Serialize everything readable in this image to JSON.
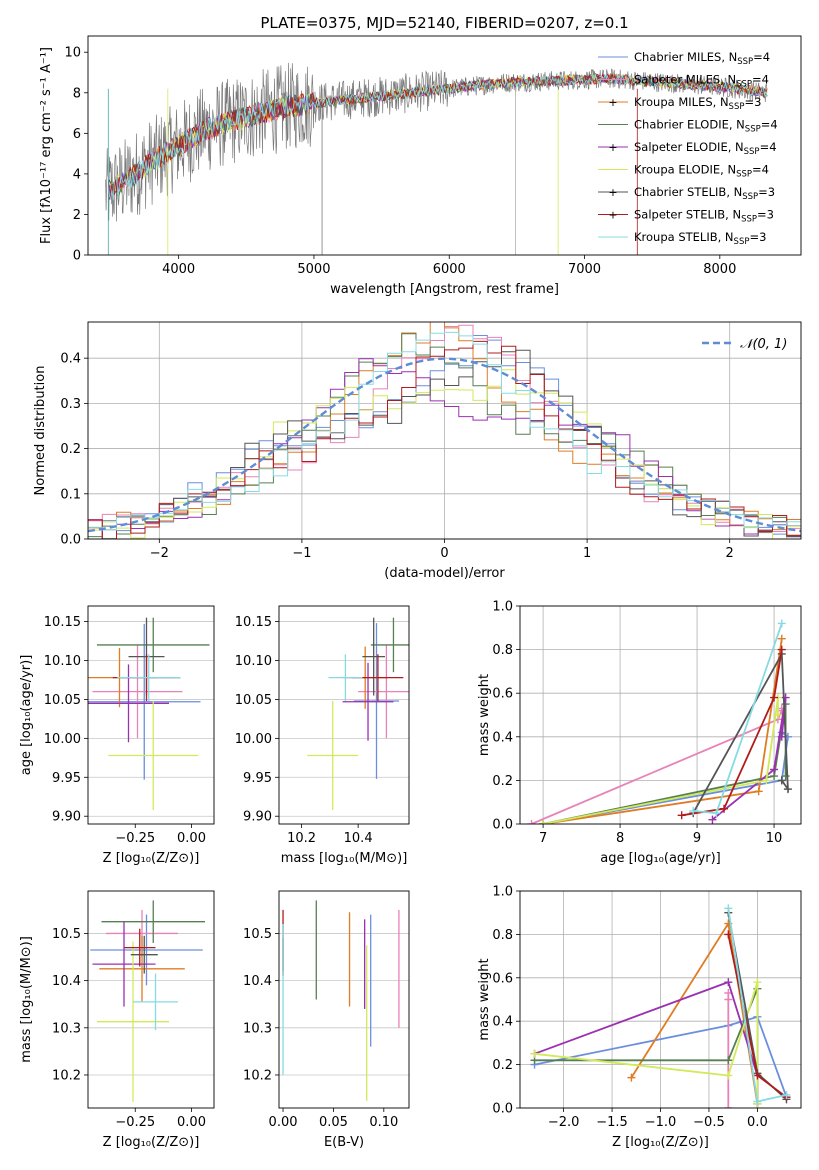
{
  "colors": {
    "Chabrier MILES": "#6b8fdc",
    "Salpeter MILES": "#e783b8",
    "Kroupa MILES": "#e07c24",
    "Chabrier ELODIE": "#567f52",
    "Salpeter ELODIE": "#9b30b0",
    "Kroupa ELODIE": "#d2ea5a",
    "Chabrier STELIB": "#555555",
    "Salpeter STELIB": "#b01c1c",
    "Kroupa STELIB": "#86dbe3",
    "normal": "#5e8dd6",
    "grid": "#b0b0b0"
  },
  "series_order": [
    "Chabrier MILES",
    "Salpeter MILES",
    "Kroupa MILES",
    "Chabrier ELODIE",
    "Salpeter ELODIE",
    "Kroupa ELODIE",
    "Chabrier STELIB",
    "Salpeter STELIB",
    "Kroupa STELIB"
  ],
  "chart_data": [
    {
      "id": "spectrum",
      "type": "line",
      "title": "PLATE=0375, MJD=52140, FIBERID=0207, z=0.1",
      "xlabel": "wavelength [Angstrom, rest frame]",
      "ylabel": "Flux [fλ10⁻¹⁷ erg cm⁻² s⁻¹ A⁻¹]",
      "xlim": [
        3330,
        8600
      ],
      "ylim": [
        0,
        10.8
      ],
      "xticks": [
        4000,
        5000,
        6000,
        7000,
        8000
      ],
      "yticks": [
        0,
        2,
        4,
        6,
        8,
        10
      ],
      "grid": false,
      "legend_position": "right",
      "continuum": {
        "x": [
          3450,
          3600,
          3800,
          4000,
          4200,
          4500,
          4800,
          5000,
          5300,
          5600,
          6000,
          6400,
          6800,
          7200,
          7600,
          8000,
          8350
        ],
        "y": [
          3.0,
          3.6,
          4.6,
          5.4,
          6.2,
          6.8,
          7.3,
          7.5,
          7.7,
          7.9,
          8.2,
          8.5,
          8.6,
          8.7,
          8.5,
          8.3,
          8.0
        ]
      },
      "legend": [
        {
          "label": "Chabrier MILES, N",
          "sub": "SSP",
          "suffix": "=4"
        },
        {
          "label": "Salpeter MILES, N",
          "sub": "SSP",
          "suffix": "=4"
        },
        {
          "label": "Kroupa MILES, N",
          "sub": "SSP",
          "suffix": "=3"
        },
        {
          "label": "Chabrier ELODIE, N",
          "sub": "SSP",
          "suffix": "=4"
        },
        {
          "label": "Salpeter ELODIE, N",
          "sub": "SSP",
          "suffix": "=4"
        },
        {
          "label": "Kroupa ELODIE, N",
          "sub": "SSP",
          "suffix": "=4"
        },
        {
          "label": "Chabrier STELIB, N",
          "sub": "SSP",
          "suffix": "=3"
        },
        {
          "label": "Salpeter STELIB, N",
          "sub": "SSP",
          "suffix": "=3"
        },
        {
          "label": "Kroupa STELIB, N",
          "sub": "SSP",
          "suffix": "=3"
        }
      ]
    },
    {
      "id": "residuals",
      "type": "histogram",
      "xlabel": "(data-model)/error",
      "ylabel": "Normed distribution",
      "xlim": [
        -2.5,
        2.5
      ],
      "ylim": [
        0,
        0.48
      ],
      "xticks": [
        -2,
        -1,
        0,
        1,
        2
      ],
      "yticks": [
        0.0,
        0.1,
        0.2,
        0.3,
        0.4
      ],
      "grid": true,
      "bin_width": 0.1,
      "legend": "𝒩(0, 1)",
      "legend_position": "top-right"
    },
    {
      "id": "age_vs_Z",
      "type": "errorbar",
      "xlabel": "Z [log₁₀(Z/Z⊙)]",
      "ylabel": "age  [log₁₀(age/yr)]",
      "xlim": [
        -0.46,
        0.1
      ],
      "ylim": [
        9.89,
        10.17
      ],
      "xticks": [
        -0.25,
        0.0
      ],
      "yticks": [
        9.9,
        9.95,
        10.0,
        10.05,
        10.1,
        10.15
      ],
      "points": [
        {
          "series": "Chabrier MILES",
          "x": -0.21,
          "xerr": 0.25,
          "y": 10.047,
          "yerr": 0.1
        },
        {
          "series": "Salpeter MILES",
          "x": -0.24,
          "xerr": 0.2,
          "y": 10.06,
          "yerr": 0.06
        },
        {
          "series": "Kroupa MILES",
          "x": -0.32,
          "xerr": 0.17,
          "y": 10.078,
          "yerr": 0.038
        },
        {
          "series": "Chabrier ELODIE",
          "x": -0.17,
          "xerr": 0.25,
          "y": 10.12,
          "yerr": 0.035
        },
        {
          "series": "Salpeter ELODIE",
          "x": -0.28,
          "xerr": 0.18,
          "y": 10.045,
          "yerr": 0.05
        },
        {
          "series": "Kroupa ELODIE",
          "x": -0.17,
          "xerr": 0.2,
          "y": 9.978,
          "yerr": 0.07
        },
        {
          "series": "Chabrier STELIB",
          "x": -0.2,
          "xerr": 0.08,
          "y": 10.105,
          "yerr": 0.05
        },
        {
          "series": "Salpeter STELIB",
          "x": -0.2,
          "xerr": 0.15,
          "y": 10.078,
          "yerr": 0.03
        },
        {
          "series": "Kroupa STELIB",
          "x": -0.19,
          "xerr": 0.14,
          "y": 10.078,
          "yerr": 0.03
        }
      ]
    },
    {
      "id": "age_vs_mass",
      "type": "errorbar",
      "xlabel": "mass [log₁₀(M/M⊙)]",
      "ylabel": "",
      "xlim": [
        10.12,
        10.58
      ],
      "ylim": [
        9.89,
        10.17
      ],
      "xticks": [
        10.2,
        10.4
      ],
      "yticks": [
        9.9,
        9.95,
        10.0,
        10.05,
        10.1,
        10.15
      ],
      "points": [
        {
          "series": "Chabrier MILES",
          "x": 10.465,
          "xerr": 0.08,
          "y": 10.048,
          "yerr": 0.1
        },
        {
          "series": "Salpeter MILES",
          "x": 10.5,
          "xerr": 0.1,
          "y": 10.06,
          "yerr": 0.06
        },
        {
          "series": "Kroupa MILES",
          "x": 10.425,
          "xerr": 0.08,
          "y": 10.078,
          "yerr": 0.04
        },
        {
          "series": "Chabrier ELODIE",
          "x": 10.525,
          "xerr": 0.08,
          "y": 10.12,
          "yerr": 0.035
        },
        {
          "series": "Salpeter ELODIE",
          "x": 10.435,
          "xerr": 0.09,
          "y": 10.047,
          "yerr": 0.05
        },
        {
          "series": "Kroupa ELODIE",
          "x": 10.31,
          "xerr": 0.09,
          "y": 9.978,
          "yerr": 0.07
        },
        {
          "series": "Chabrier STELIB",
          "x": 10.455,
          "xerr": 0.04,
          "y": 10.105,
          "yerr": 0.05
        },
        {
          "series": "Salpeter STELIB",
          "x": 10.47,
          "xerr": 0.09,
          "y": 10.078,
          "yerr": 0.03
        },
        {
          "series": "Kroupa STELIB",
          "x": 10.355,
          "xerr": 0.06,
          "y": 10.078,
          "yerr": 0.03
        }
      ]
    },
    {
      "id": "weight_vs_age",
      "type": "line",
      "xlabel": "age  [log₁₀(age/yr)]",
      "ylabel": "mass weight",
      "xlim": [
        6.7,
        10.35
      ],
      "ylim": [
        0,
        1.0
      ],
      "xticks": [
        7,
        8,
        9,
        10
      ],
      "yticks": [
        0.0,
        0.2,
        0.4,
        0.6,
        0.8,
        1.0
      ],
      "grid": true,
      "series": [
        {
          "name": "Chabrier MILES",
          "x": [
            7.0,
            10.1,
            10.18,
            10.1
          ],
          "y": [
            0.0,
            0.2,
            0.4,
            0.42
          ]
        },
        {
          "name": "Salpeter MILES",
          "x": [
            6.85,
            10.05,
            10.1,
            10.1
          ],
          "y": [
            0.0,
            0.48,
            0.52,
            0.53
          ]
        },
        {
          "name": "Kroupa MILES",
          "x": [
            7.0,
            9.8,
            10.1
          ],
          "y": [
            0.0,
            0.15,
            0.85
          ]
        },
        {
          "name": "Chabrier ELODIE",
          "x": [
            7.0,
            10.0,
            10.15,
            10.15
          ],
          "y": [
            0.0,
            0.22,
            0.55,
            0.22
          ]
        },
        {
          "name": "Salpeter ELODIE",
          "x": [
            9.2,
            10.0,
            10.15,
            10.1
          ],
          "y": [
            0.02,
            0.25,
            0.58,
            0.4
          ]
        },
        {
          "name": "Kroupa ELODIE",
          "x": [
            7.0,
            9.9,
            10.05,
            10.05
          ],
          "y": [
            0.0,
            0.2,
            0.58,
            0.5
          ]
        },
        {
          "name": "Chabrier STELIB",
          "x": [
            8.95,
            10.1,
            10.18,
            10.1
          ],
          "y": [
            0.05,
            0.78,
            0.16,
            0.2
          ]
        },
        {
          "name": "Salpeter STELIB",
          "x": [
            8.8,
            9.35,
            10.0,
            10.1
          ],
          "y": [
            0.04,
            0.07,
            0.58,
            0.8
          ]
        },
        {
          "name": "Kroupa STELIB",
          "x": [
            8.95,
            9.25,
            10.1
          ],
          "y": [
            0.06,
            0.05,
            0.92
          ]
        }
      ]
    },
    {
      "id": "mass_vs_Z",
      "type": "errorbar",
      "xlabel": "Z [log₁₀(Z/Z⊙)]",
      "ylabel": "mass [log₁₀(M/M⊙)]",
      "xlim": [
        -0.46,
        0.1
      ],
      "ylim": [
        10.13,
        10.59
      ],
      "xticks": [
        -0.25,
        0.0
      ],
      "yticks": [
        10.2,
        10.3,
        10.4,
        10.5
      ],
      "points": [
        {
          "series": "Chabrier MILES",
          "x": -0.2,
          "xerr": 0.25,
          "y": 10.465,
          "yerr": 0.075
        },
        {
          "series": "Salpeter MILES",
          "x": -0.22,
          "xerr": 0.16,
          "y": 10.5,
          "yerr": 0.05
        },
        {
          "series": "Kroupa MILES",
          "x": -0.22,
          "xerr": 0.19,
          "y": 10.425,
          "yerr": 0.07
        },
        {
          "series": "Chabrier ELODIE",
          "x": -0.17,
          "xerr": 0.23,
          "y": 10.525,
          "yerr": 0.045
        },
        {
          "series": "Salpeter ELODIE",
          "x": -0.3,
          "xerr": 0.14,
          "y": 10.435,
          "yerr": 0.09
        },
        {
          "series": "Kroupa ELODIE",
          "x": -0.26,
          "xerr": 0.16,
          "y": 10.313,
          "yerr": 0.17
        },
        {
          "series": "Chabrier STELIB",
          "x": -0.21,
          "xerr": 0.06,
          "y": 10.455,
          "yerr": 0.04
        },
        {
          "series": "Salpeter STELIB",
          "x": -0.23,
          "xerr": 0.07,
          "y": 10.47,
          "yerr": 0.04
        },
        {
          "series": "Kroupa STELIB",
          "x": -0.16,
          "xerr": 0.1,
          "y": 10.355,
          "yerr": 0.06
        }
      ]
    },
    {
      "id": "mass_vs_EBV",
      "type": "errorbar",
      "xlabel": "E(B-V)",
      "ylabel": "",
      "xlim": [
        -0.004,
        0.125
      ],
      "ylim": [
        10.13,
        10.59
      ],
      "xticks": [
        0.0,
        0.05,
        0.1
      ],
      "yticks": [
        10.2,
        10.3,
        10.4,
        10.5
      ],
      "points": [
        {
          "series": "Chabrier MILES",
          "x": 0.087,
          "xerr": 0,
          "y": 10.4,
          "yerr": 0.14
        },
        {
          "series": "Salpeter MILES",
          "x": 0.115,
          "xerr": 0,
          "y": 10.425,
          "yerr": 0.125
        },
        {
          "series": "Kroupa MILES",
          "x": 0.066,
          "xerr": 0,
          "y": 10.445,
          "yerr": 0.1
        },
        {
          "series": "Chabrier ELODIE",
          "x": 0.033,
          "xerr": 0,
          "y": 10.465,
          "yerr": 0.105
        },
        {
          "series": "Salpeter ELODIE",
          "x": 0.081,
          "xerr": 0,
          "y": 10.435,
          "yerr": 0.095
        },
        {
          "series": "Kroupa ELODIE",
          "x": 0.083,
          "xerr": 0,
          "y": 10.31,
          "yerr": 0.165
        },
        {
          "series": "Chabrier STELIB",
          "x": 0.0,
          "xerr": 0,
          "y": 10.455,
          "yerr": 0.035
        },
        {
          "series": "Salpeter STELIB",
          "x": 0.0,
          "xerr": 0,
          "y": 10.48,
          "yerr": 0.07
        },
        {
          "series": "Kroupa STELIB",
          "x": 0.0,
          "xerr": 0,
          "y": 10.36,
          "yerr": 0.16
        }
      ]
    },
    {
      "id": "weight_vs_Z",
      "type": "line",
      "xlabel": "Z [log₁₀(Z/Z⊙)]",
      "ylabel": "mass weight",
      "xlim": [
        -2.45,
        0.45
      ],
      "ylim": [
        0,
        1.0
      ],
      "xticks": [
        -2.0,
        -1.5,
        -1.0,
        -0.5,
        0.0
      ],
      "yticks": [
        0.0,
        0.2,
        0.4,
        0.6,
        0.8,
        1.0
      ],
      "grid": true,
      "series": [
        {
          "name": "Chabrier MILES",
          "x": [
            -2.3,
            -0.3,
            0.0,
            0.3
          ],
          "y": [
            0.2,
            0.38,
            0.42,
            0.05
          ]
        },
        {
          "name": "Salpeter MILES",
          "x": [
            -0.3,
            -0.3,
            -0.3
          ],
          "y": [
            0.0,
            0.5,
            0.53
          ]
        },
        {
          "name": "Kroupa MILES",
          "x": [
            -1.3,
            -0.3,
            0.0
          ],
          "y": [
            0.14,
            0.85,
            0.02
          ]
        },
        {
          "name": "Chabrier ELODIE",
          "x": [
            -2.3,
            -0.3,
            0.0,
            0.0
          ],
          "y": [
            0.22,
            0.22,
            0.55,
            0.02
          ]
        },
        {
          "name": "Salpeter ELODIE",
          "x": [
            -2.3,
            -0.3,
            0.0,
            0.0
          ],
          "y": [
            0.25,
            0.58,
            0.15,
            0.02
          ]
        },
        {
          "name": "Kroupa ELODIE",
          "x": [
            -2.3,
            -0.3,
            0.0,
            0.0
          ],
          "y": [
            0.25,
            0.15,
            0.58,
            0.02
          ]
        },
        {
          "name": "Chabrier STELIB",
          "x": [
            -0.3,
            0.0,
            0.3
          ],
          "y": [
            0.9,
            0.16,
            0.04
          ]
        },
        {
          "name": "Salpeter STELIB",
          "x": [
            -0.3,
            0.0,
            0.3
          ],
          "y": [
            0.8,
            0.15,
            0.05
          ]
        },
        {
          "name": "Kroupa STELIB",
          "x": [
            -0.3,
            0.0,
            0.3
          ],
          "y": [
            0.92,
            0.03,
            0.06
          ]
        }
      ]
    }
  ]
}
